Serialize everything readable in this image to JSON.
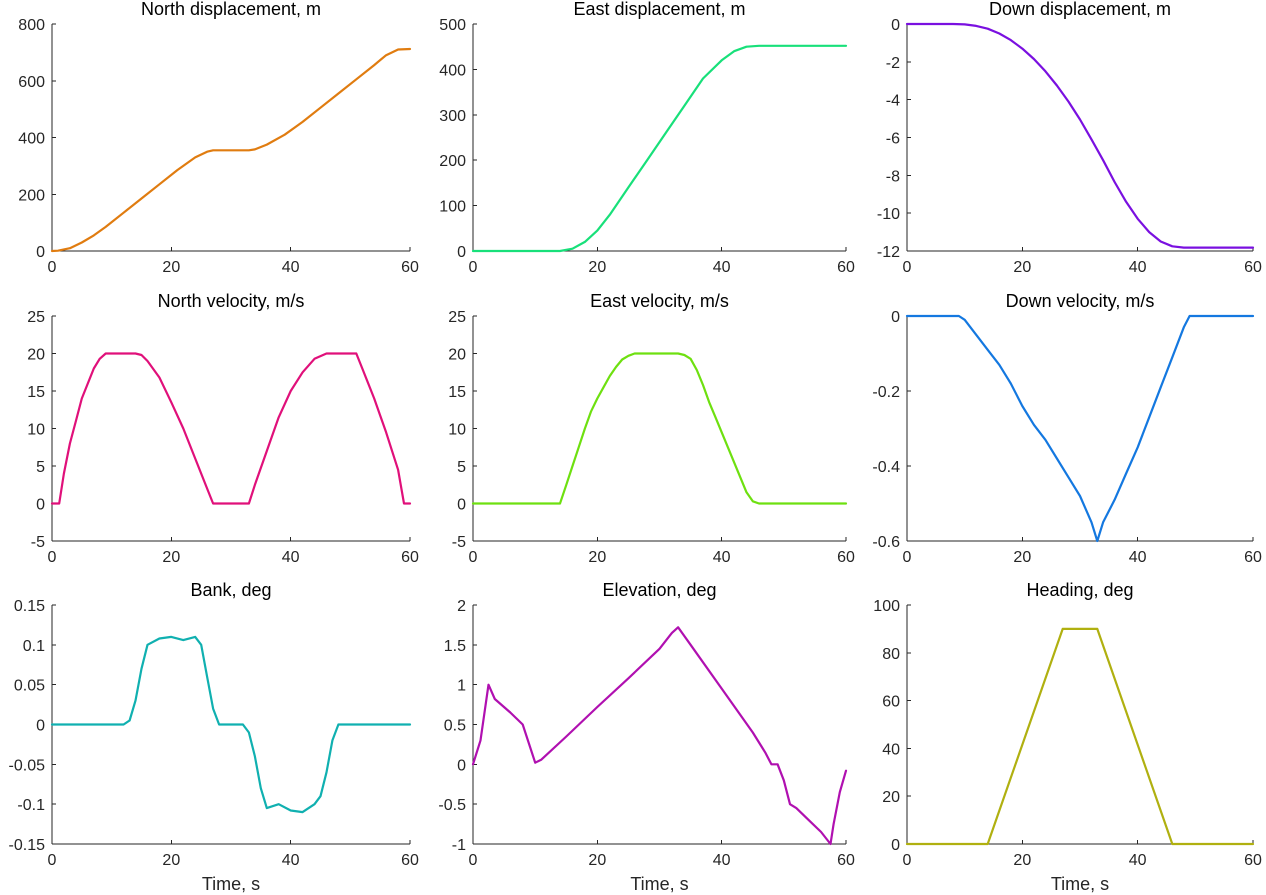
{
  "chart_data": [
    {
      "type": "line",
      "title": "North displacement, m",
      "xlabel": "",
      "ylabel": "",
      "xlim": [
        0,
        60
      ],
      "ylim": [
        0,
        800
      ],
      "xticks": [
        0,
        20,
        40,
        60
      ],
      "yticks": [
        0,
        200,
        400,
        600,
        800
      ],
      "grid": false,
      "series": [
        {
          "name": "North displacement",
          "color": "#E07C10",
          "x": [
            0,
            1,
            3,
            5,
            7,
            9,
            12,
            15,
            18,
            21,
            24,
            26,
            27,
            30,
            33,
            34,
            36,
            39,
            42,
            45,
            48,
            51,
            54,
            56,
            58,
            60
          ],
          "y": [
            0,
            1,
            10,
            30,
            55,
            85,
            135,
            185,
            235,
            285,
            330,
            350,
            355,
            355,
            355,
            358,
            375,
            410,
            455,
            505,
            555,
            605,
            655,
            690,
            710,
            712
          ]
        }
      ]
    },
    {
      "type": "line",
      "title": "East displacement, m",
      "xlabel": "",
      "ylabel": "",
      "xlim": [
        0,
        60
      ],
      "ylim": [
        0,
        500
      ],
      "xticks": [
        0,
        20,
        40,
        60
      ],
      "yticks": [
        0,
        100,
        200,
        300,
        400,
        500
      ],
      "grid": false,
      "series": [
        {
          "name": "East displacement",
          "color": "#18E07A",
          "x": [
            0,
            13,
            14,
            16,
            18,
            20,
            22,
            25,
            28,
            31,
            34,
            37,
            40,
            42,
            44,
            46,
            50,
            60
          ],
          "y": [
            0,
            0,
            0,
            5,
            20,
            45,
            80,
            140,
            200,
            260,
            320,
            380,
            420,
            440,
            450,
            452,
            452,
            452
          ]
        }
      ]
    },
    {
      "type": "line",
      "title": "Down displacement, m",
      "xlabel": "",
      "ylabel": "",
      "xlim": [
        0,
        60
      ],
      "ylim": [
        -12,
        0
      ],
      "xticks": [
        0,
        20,
        40,
        60
      ],
      "yticks": [
        0,
        -2,
        -4,
        -6,
        -8,
        -10,
        -12
      ],
      "grid": false,
      "series": [
        {
          "name": "Down displacement",
          "color": "#7A10E0",
          "x": [
            0,
            8,
            10,
            12,
            14,
            16,
            18,
            20,
            22,
            24,
            26,
            28,
            30,
            32,
            34,
            36,
            38,
            40,
            42,
            44,
            46,
            48,
            52,
            60
          ],
          "y": [
            0,
            0,
            -0.02,
            -0.1,
            -0.25,
            -0.5,
            -0.85,
            -1.3,
            -1.85,
            -2.5,
            -3.25,
            -4.1,
            -5.05,
            -6.1,
            -7.2,
            -8.35,
            -9.4,
            -10.3,
            -11.0,
            -11.5,
            -11.75,
            -11.82,
            -11.82,
            -11.82
          ]
        }
      ]
    },
    {
      "type": "line",
      "title": "North velocity, m/s",
      "xlabel": "",
      "ylabel": "",
      "xlim": [
        0,
        60
      ],
      "ylim": [
        -5,
        25
      ],
      "xticks": [
        0,
        20,
        40,
        60
      ],
      "yticks": [
        -5,
        0,
        5,
        10,
        15,
        20,
        25
      ],
      "grid": false,
      "series": [
        {
          "name": "North velocity",
          "color": "#E0107A",
          "x": [
            0,
            1.2,
            2,
            3,
            4,
            5,
            6,
            7,
            8,
            9,
            14,
            15,
            16,
            18,
            20,
            22,
            24,
            26,
            27,
            33,
            34,
            36,
            38,
            40,
            42,
            44,
            46,
            51,
            52,
            54,
            56,
            58,
            59,
            60
          ],
          "y": [
            0,
            0,
            4,
            8,
            11,
            14,
            16,
            18,
            19.3,
            20,
            20,
            19.8,
            19,
            16.8,
            13.5,
            10,
            6,
            2,
            0,
            0,
            2.5,
            7,
            11.5,
            15,
            17.5,
            19.3,
            20,
            20,
            18,
            14,
            9.5,
            4.5,
            0,
            0
          ]
        }
      ]
    },
    {
      "type": "line",
      "title": "East velocity, m/s",
      "xlabel": "",
      "ylabel": "",
      "xlim": [
        0,
        60
      ],
      "ylim": [
        -5,
        25
      ],
      "xticks": [
        0,
        20,
        40,
        60
      ],
      "yticks": [
        -5,
        0,
        5,
        10,
        15,
        20,
        25
      ],
      "grid": false,
      "series": [
        {
          "name": "East velocity",
          "color": "#6EE010",
          "x": [
            0,
            14,
            15,
            16,
            17,
            18,
            19,
            20,
            21,
            22,
            23,
            24,
            25,
            26,
            27,
            33,
            34,
            35,
            36,
            37,
            38,
            39,
            40,
            41,
            42,
            43,
            44,
            45,
            46,
            60
          ],
          "y": [
            0,
            0,
            2.5,
            5,
            7.5,
            10,
            12.3,
            14,
            15.5,
            17,
            18.2,
            19.2,
            19.7,
            20,
            20,
            20,
            19.8,
            19.3,
            17.8,
            15.8,
            13.5,
            11.5,
            9.5,
            7.5,
            5.5,
            3.5,
            1.5,
            0.3,
            0,
            0
          ]
        }
      ]
    },
    {
      "type": "line",
      "title": "Down velocity, m/s",
      "xlabel": "",
      "ylabel": "",
      "xlim": [
        0,
        60
      ],
      "ylim": [
        -0.6,
        0
      ],
      "xticks": [
        0,
        20,
        40,
        60
      ],
      "yticks": [
        0,
        -0.2,
        -0.4,
        -0.6
      ],
      "grid": false,
      "series": [
        {
          "name": "Down velocity",
          "color": "#1478E0",
          "x": [
            0,
            9,
            10,
            12,
            14,
            16,
            18,
            20,
            22,
            24,
            26,
            28,
            30,
            32,
            33,
            34,
            36,
            38,
            40,
            42,
            44,
            46,
            48,
            49,
            52,
            60
          ],
          "y": [
            0,
            0,
            -0.01,
            -0.05,
            -0.09,
            -0.13,
            -0.18,
            -0.24,
            -0.29,
            -0.33,
            -0.38,
            -0.43,
            -0.48,
            -0.55,
            -0.6,
            -0.55,
            -0.49,
            -0.42,
            -0.35,
            -0.27,
            -0.19,
            -0.11,
            -0.03,
            0,
            0,
            0
          ]
        }
      ]
    },
    {
      "type": "line",
      "title": "Bank, deg",
      "xlabel": "Time, s",
      "ylabel": "",
      "xlim": [
        0,
        60
      ],
      "ylim": [
        -0.15,
        0.15
      ],
      "xticks": [
        0,
        20,
        40,
        60
      ],
      "yticks": [
        0.15,
        0.1,
        0.05,
        0,
        -0.05,
        -0.1,
        -0.15
      ],
      "grid": false,
      "series": [
        {
          "name": "Bank",
          "color": "#10B0B0",
          "x": [
            0,
            12,
            13,
            14,
            15,
            16,
            18,
            20,
            22,
            24,
            25,
            26,
            27,
            28,
            30,
            32,
            33,
            34,
            35,
            36,
            38,
            40,
            42,
            44,
            45,
            46,
            47,
            48,
            60
          ],
          "y": [
            0,
            0,
            0.005,
            0.03,
            0.07,
            0.1,
            0.108,
            0.11,
            0.106,
            0.11,
            0.1,
            0.06,
            0.02,
            0,
            0,
            0,
            -0.01,
            -0.04,
            -0.08,
            -0.105,
            -0.1,
            -0.108,
            -0.11,
            -0.1,
            -0.09,
            -0.06,
            -0.02,
            0,
            0
          ]
        }
      ]
    },
    {
      "type": "line",
      "title": "Elevation, deg",
      "xlabel": "Time, s",
      "ylabel": "",
      "xlim": [
        0,
        60
      ],
      "ylim": [
        -1,
        2
      ],
      "xticks": [
        0,
        20,
        40,
        60
      ],
      "yticks": [
        2,
        1.5,
        1,
        0.5,
        0,
        -0.5,
        -1
      ],
      "grid": false,
      "series": [
        {
          "name": "Elevation",
          "color": "#B010B0",
          "x": [
            0,
            1.2,
            2.5,
            3.5,
            6,
            8,
            10,
            11,
            15,
            20,
            25,
            30,
            32,
            33,
            35,
            40,
            45,
            47,
            48,
            48.5,
            49,
            50,
            51,
            52,
            54,
            56,
            57.5,
            58,
            59,
            60
          ],
          "y": [
            0,
            0.3,
            1.0,
            0.82,
            0.65,
            0.5,
            0.02,
            0.06,
            0.35,
            0.72,
            1.08,
            1.45,
            1.65,
            1.72,
            1.5,
            0.95,
            0.4,
            0.15,
            0,
            0,
            0,
            -0.2,
            -0.5,
            -0.55,
            -0.7,
            -0.85,
            -1.0,
            -0.75,
            -0.35,
            -0.08
          ]
        }
      ]
    },
    {
      "type": "line",
      "title": "Heading, deg",
      "xlabel": "Time, s",
      "ylabel": "",
      "xlim": [
        0,
        60
      ],
      "ylim": [
        0,
        100
      ],
      "xticks": [
        0,
        20,
        40,
        60
      ],
      "yticks": [
        0,
        20,
        40,
        60,
        80,
        100
      ],
      "grid": false,
      "series": [
        {
          "name": "Heading",
          "color": "#B0B010",
          "x": [
            0,
            14,
            27,
            33,
            46,
            60
          ],
          "y": [
            0,
            0,
            90,
            90,
            0,
            0
          ]
        }
      ]
    }
  ]
}
